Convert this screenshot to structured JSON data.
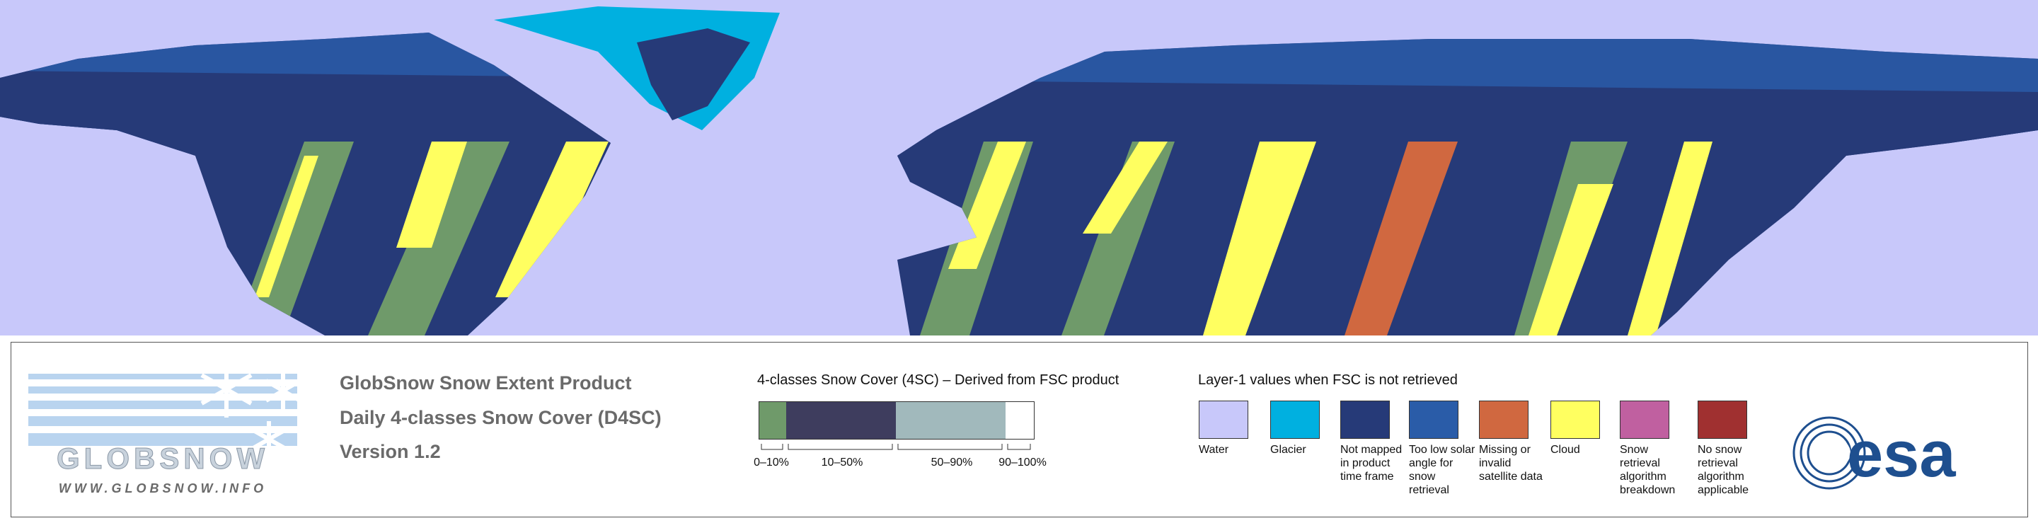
{
  "logo": {
    "name": "GLOBSNOW",
    "url": "WWW.GLOBSNOW.INFO"
  },
  "header": {
    "title": "GlobSnow Snow Extent Product",
    "subtitle": "Daily 4-classes Snow Cover (D4SC)",
    "version": "Version 1.2"
  },
  "snow_cover_legend": {
    "title": "4-classes Snow Cover (4SC) – Derived from FSC product",
    "classes": [
      {
        "label": "0–10%",
        "color": "#6f9a6a"
      },
      {
        "label": "10–50%",
        "color": "#3e3d5e"
      },
      {
        "label": "50–90%",
        "color": "#a1b9bc"
      },
      {
        "label": "90–100%",
        "color": "#ffffff"
      }
    ]
  },
  "layer1_legend": {
    "title": "Layer-1 values when FSC is not retrieved",
    "items": [
      {
        "label": "Water",
        "color": "#c8c8fa"
      },
      {
        "label": "Glacier",
        "color": "#00b0e0"
      },
      {
        "label": "Not mapped in product time frame",
        "color": "#263a78"
      },
      {
        "label": "Too low solar angle for snow retrieval",
        "color": "#2a5ca8"
      },
      {
        "label": "Missing or invalid satellite data",
        "color": "#d06840"
      },
      {
        "label": "Cloud",
        "color": "#ffff60"
      },
      {
        "label": "Snow retrieval algorithm breakdown",
        "color": "#c060a0"
      },
      {
        "label": "No snow retrieval algorithm applicable",
        "color": "#a03030"
      }
    ]
  },
  "agency_logo": "esa"
}
